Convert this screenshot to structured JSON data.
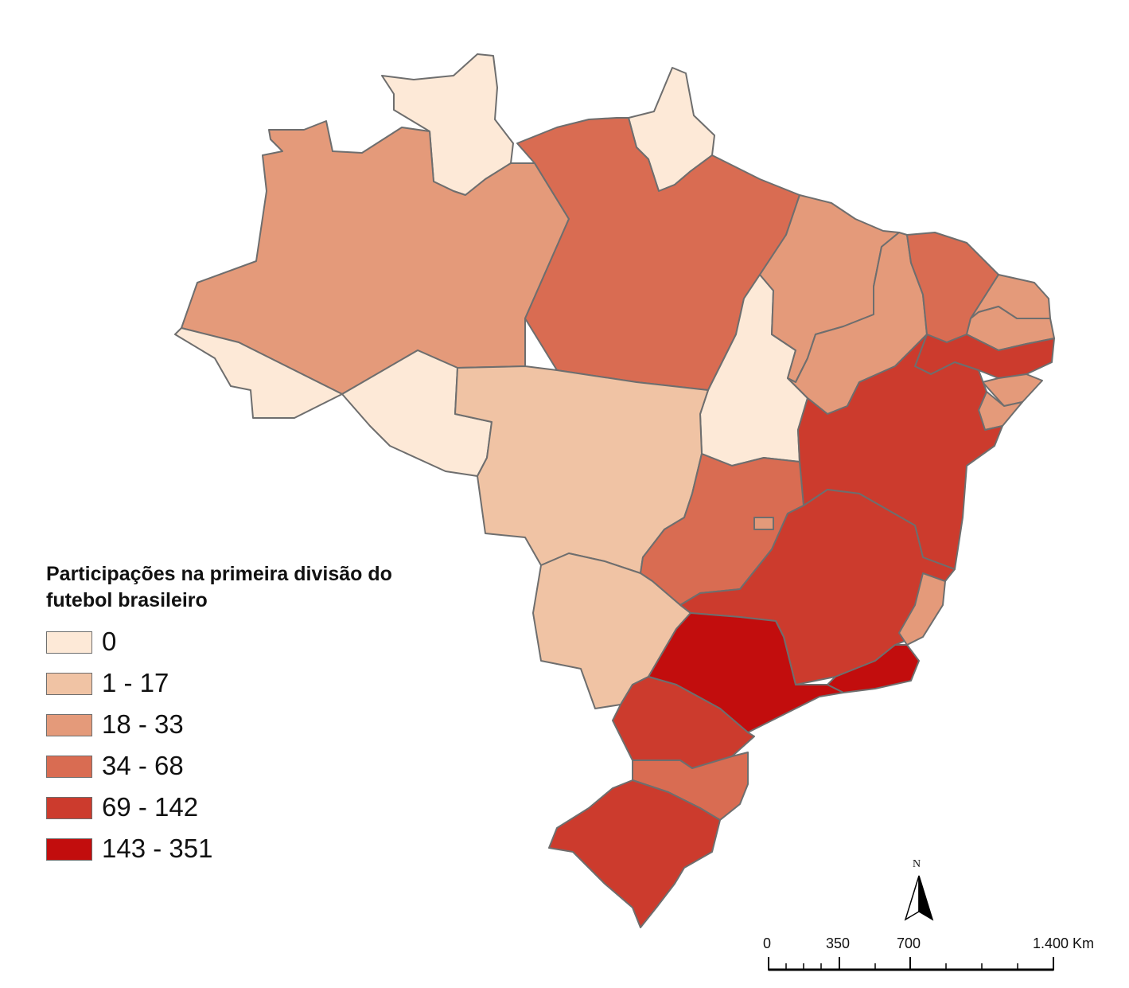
{
  "legend": {
    "title_line1": "Participações na primeira divisão do",
    "title_line2": "futebol brasileiro",
    "classes": [
      {
        "label": "0",
        "color": "#fde9d7"
      },
      {
        "label": "1 - 17",
        "color": "#f0c3a4"
      },
      {
        "label": "18 - 33",
        "color": "#e49a7a"
      },
      {
        "label": "34 - 68",
        "color": "#d96c52"
      },
      {
        "label": "69 - 142",
        "color": "#cc3b2d"
      },
      {
        "label": "143 - 351",
        "color": "#c20d0d"
      }
    ]
  },
  "north_arrow": {
    "label": "N"
  },
  "scale_bar": {
    "labels": [
      "0",
      "350",
      "700",
      "1.400 Km"
    ]
  },
  "states": {
    "RR": 0,
    "AP": 0,
    "AC": 0,
    "RO": 0,
    "TO": 0,
    "MT": 1,
    "MS": 1,
    "AM": 2,
    "MA": 2,
    "PI": 2,
    "RN": 2,
    "PB": 2,
    "AL": 2,
    "SE": 2,
    "ES": 2,
    "PA": 3,
    "CE": 3,
    "GO": 3,
    "DF": 2,
    "SC": 3,
    "PE": 4,
    "BA": 4,
    "MG": 4,
    "PR": 4,
    "RS": 4,
    "SP": 5,
    "RJ": 5
  }
}
